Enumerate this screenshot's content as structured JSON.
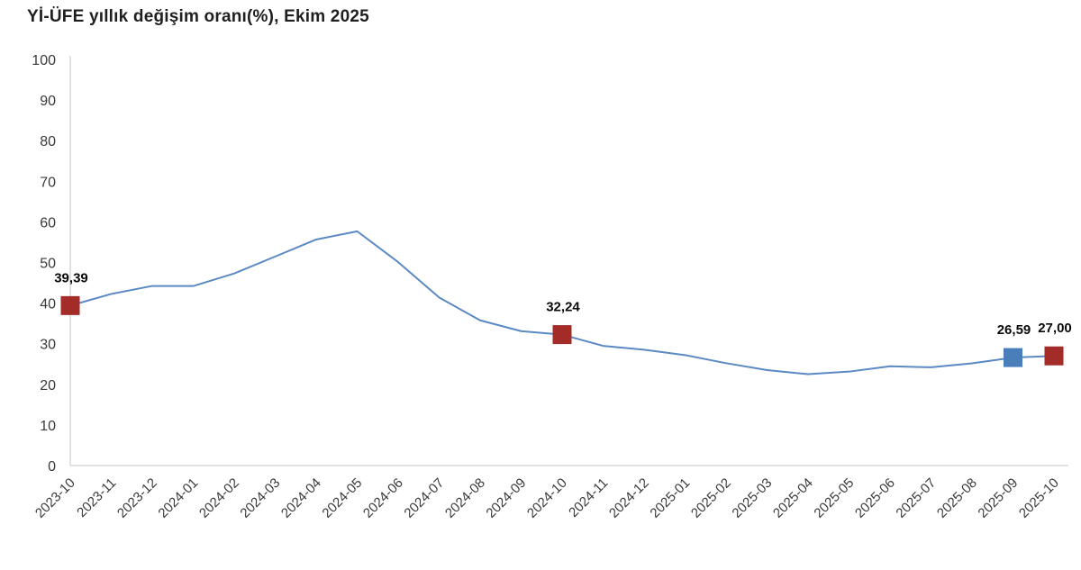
{
  "chart_data": {
    "type": "line",
    "title": "Yİ-ÜFE yıllık değişim oranı(%), Ekim 2025",
    "x": [
      "2023-10",
      "2023-11",
      "2023-12",
      "2024-01",
      "2024-02",
      "2024-03",
      "2024-04",
      "2024-05",
      "2024-06",
      "2024-07",
      "2024-08",
      "2024-09",
      "2024-10",
      "2024-11",
      "2024-12",
      "2025-01",
      "2025-02",
      "2025-03",
      "2025-04",
      "2025-05",
      "2025-06",
      "2025-07",
      "2025-08",
      "2025-09",
      "2025-10"
    ],
    "values": [
      39.39,
      42.25,
      44.22,
      44.2,
      47.29,
      51.47,
      55.66,
      57.68,
      50.09,
      41.37,
      35.75,
      33.09,
      32.24,
      29.47,
      28.52,
      27.2,
      25.21,
      23.5,
      22.5,
      23.13,
      24.45,
      24.19,
      25.16,
      26.59,
      27.0
    ],
    "ylim": [
      0,
      100
    ],
    "yticks": [
      0,
      10,
      20,
      30,
      40,
      50,
      60,
      70,
      80,
      90,
      100
    ],
    "grid": false,
    "legend": "none",
    "line_color": "#5b89c3",
    "axis_color": "#d8d8d8",
    "tick_label_color": "#3a3a3a",
    "annotation_text_color": "#0a0a0a",
    "annotations": [
      {
        "x": "2023-10",
        "value": 39.39,
        "label": "39,39",
        "marker_color": "#a32c28"
      },
      {
        "x": "2024-10",
        "value": 32.24,
        "label": "32,24",
        "marker_color": "#a32c28"
      },
      {
        "x": "2025-09",
        "value": 26.59,
        "label": "26,59",
        "marker_color": "#4a7ebb"
      },
      {
        "x": "2025-10",
        "value": 27.0,
        "label": "27,00",
        "marker_color": "#a32c28"
      }
    ]
  }
}
